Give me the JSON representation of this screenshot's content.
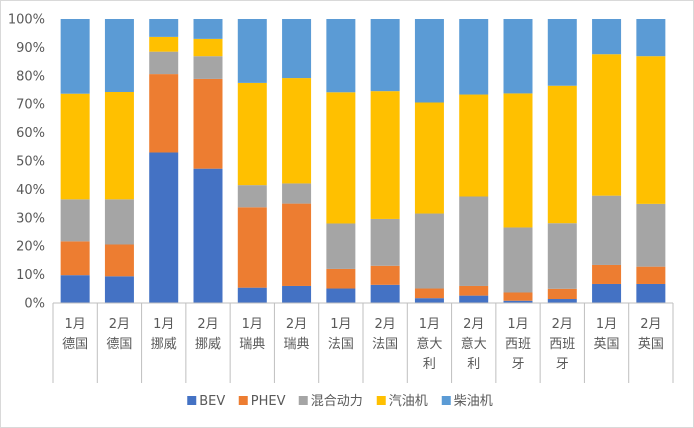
{
  "chart_data": {
    "type": "bar",
    "stacked": true,
    "percent": true,
    "x_groups": [
      {
        "lines": [
          "1月",
          "德国"
        ]
      },
      {
        "lines": [
          "2月",
          "德国"
        ]
      },
      {
        "lines": [
          "1月",
          "挪威"
        ]
      },
      {
        "lines": [
          "2月",
          "挪威"
        ]
      },
      {
        "lines": [
          "1月",
          "瑞典"
        ]
      },
      {
        "lines": [
          "2月",
          "瑞典"
        ]
      },
      {
        "lines": [
          "1月",
          "法国"
        ]
      },
      {
        "lines": [
          "2月",
          "法国"
        ]
      },
      {
        "lines": [
          "1月",
          "意大",
          "利"
        ]
      },
      {
        "lines": [
          "2月",
          "意大",
          "利"
        ]
      },
      {
        "lines": [
          "1月",
          "西班",
          "牙"
        ]
      },
      {
        "lines": [
          "2月",
          "西班",
          "牙"
        ]
      },
      {
        "lines": [
          "1月",
          "英国"
        ]
      },
      {
        "lines": [
          "2月",
          "英国"
        ]
      }
    ],
    "y_ticks": [
      "0%",
      "10%",
      "20%",
      "30%",
      "40%",
      "50%",
      "60%",
      "70%",
      "80%",
      "90%",
      "100%"
    ],
    "ylim": [
      0,
      100
    ],
    "grid": false,
    "legend_position": "bottom",
    "series": [
      {
        "name": "BEV",
        "color": "#4472C4",
        "values": [
          9.8,
          9.4,
          53,
          47.3,
          5.4,
          6,
          5.1,
          6.4,
          1.7,
          2.6,
          0.8,
          1.4,
          6.7,
          6.7
        ]
      },
      {
        "name": "PHEV",
        "color": "#ED7D31",
        "values": [
          11.9,
          11.2,
          27.6,
          31.6,
          28.3,
          29,
          6.9,
          6.7,
          3.4,
          3.4,
          2.9,
          3.6,
          6.7,
          6.1
        ]
      },
      {
        "name": "混合动力",
        "color": "#A5A5A5",
        "values": [
          14.8,
          15.9,
          7.9,
          8,
          7.8,
          7.1,
          16,
          16.5,
          26.4,
          31.5,
          22.9,
          23.1,
          24.4,
          22.1
        ]
      },
      {
        "name": "汽油机",
        "color": "#FFC000",
        "values": [
          37.2,
          37.8,
          5.2,
          6.1,
          36,
          37.1,
          46.2,
          45,
          39.1,
          35.9,
          47.2,
          48.4,
          49.8,
          52
        ]
      },
      {
        "name": "柴油机",
        "color": "#5B9BD5",
        "values": [
          26.3,
          25.7,
          6.3,
          7,
          22.5,
          20.8,
          25.8,
          25.4,
          29.4,
          26.6,
          26.2,
          23.5,
          12.4,
          13.1
        ]
      }
    ]
  }
}
